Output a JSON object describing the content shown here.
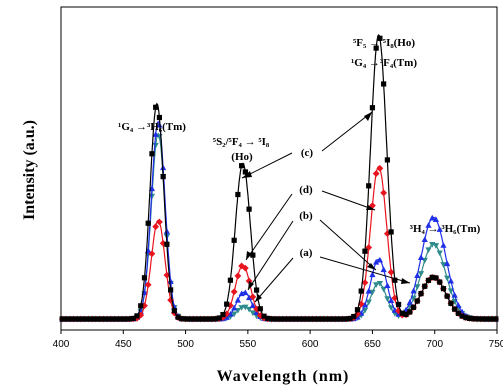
{
  "chart_data": {
    "type": "line",
    "xlabel": "Wavelength (nm)",
    "ylabel": "Intensity (a.u.)",
    "xlim": [
      400,
      750
    ],
    "ylim": [
      0,
      1
    ],
    "x_ticks": [
      "400",
      "450",
      "500",
      "550",
      "600",
      "650",
      "700",
      "750"
    ],
    "grid": false,
    "legend": "none",
    "series": [
      {
        "name": "(a)",
        "color": "#2e8b8b",
        "marker": "triangle-down",
        "peaks": [
          {
            "center": 478,
            "sigma": 5.5,
            "amp": 0.62
          },
          {
            "center": 547,
            "sigma": 6.0,
            "amp": 0.04
          },
          {
            "center": 655,
            "sigma": 6.5,
            "amp": 0.12
          },
          {
            "center": 699,
            "sigma": 10.0,
            "amp": 0.25
          }
        ]
      },
      {
        "name": "(b)",
        "color": "#1f2fe8",
        "marker": "triangle-up",
        "peaks": [
          {
            "center": 478,
            "sigma": 5.5,
            "amp": 0.66
          },
          {
            "center": 547,
            "sigma": 6.0,
            "amp": 0.09
          },
          {
            "center": 655,
            "sigma": 6.5,
            "amp": 0.2
          },
          {
            "center": 699,
            "sigma": 10.0,
            "amp": 0.34
          }
        ]
      },
      {
        "name": "(c)",
        "color": "#000000",
        "marker": "square",
        "peaks": [
          {
            "center": 477,
            "sigma": 5.5,
            "amp": 0.72
          },
          {
            "center": 546,
            "sigma": 6.0,
            "amp": 0.52
          },
          {
            "center": 655,
            "sigma": 6.5,
            "amp": 0.95
          },
          {
            "center": 699,
            "sigma": 10.0,
            "amp": 0.14
          }
        ]
      },
      {
        "name": "(d)",
        "color": "#e8141e",
        "marker": "diamond",
        "peaks": [
          {
            "center": 478,
            "sigma": 5.5,
            "amp": 0.33
          },
          {
            "center": 546,
            "sigma": 6.0,
            "amp": 0.18
          },
          {
            "center": 655,
            "sigma": 6.5,
            "amp": 0.51
          },
          {
            "center": 699,
            "sigma": 10.0,
            "amp": 0.14
          }
        ]
      }
    ],
    "baseline": 0.02,
    "annotations": {
      "tm_blue": "¹G₄ →³H₆(Tm)",
      "ho_green_1": "⁵S₂/⁵F₄ → ⁵I₈",
      "ho_green_2": "(Ho)",
      "red_1": "⁵F₅ → ⁵I₈(Ho)",
      "red_2": "¹G₄ →³F₄(Tm)",
      "tm_nir": "³H₄ → ³H₆(Tm)",
      "label_c": "(c)",
      "label_d": "(d)",
      "label_b": "(b)",
      "label_a": "(a)"
    }
  }
}
